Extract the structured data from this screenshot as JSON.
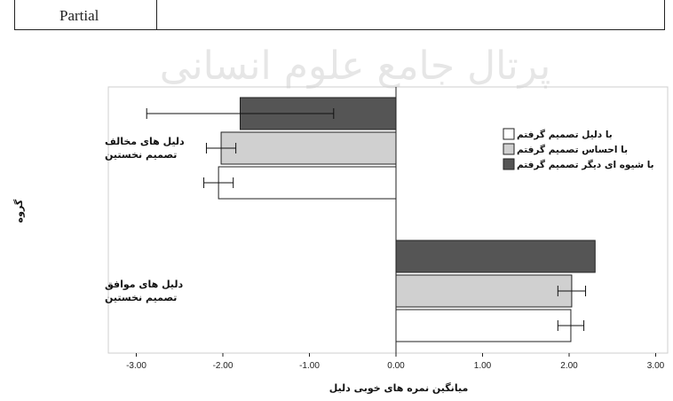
{
  "table_fragment": {
    "text": "Partial"
  },
  "watermark": {
    "text": "پرتال جامع علوم انسانی"
  },
  "chart_data": {
    "type": "bar",
    "orientation": "horizontal",
    "title": "",
    "xlabel": "میانگین نمره های خوبی دلیل",
    "ylabel": "گروه",
    "xlim": [
      -3.3,
      3.2
    ],
    "xticks": [
      "-3.00",
      "-2.00",
      "-1.00",
      "0.00",
      "1.00",
      "2.00",
      "3.00"
    ],
    "categories": [
      "دلیل های مخالف تصمیم نخستین",
      "دلیل های موافق تصمیم نخستین"
    ],
    "category_lines": [
      [
        "دلیل های مخالف",
        "تصمیم نخستین"
      ],
      [
        "دلیل های موافق",
        "تصمیم نخستین"
      ]
    ],
    "series": [
      {
        "name": "با دلیل تصمیم گرفتم",
        "color": "#ffffff",
        "values": [
          -2.05,
          2.02
        ],
        "error": [
          0.17,
          0.15
        ]
      },
      {
        "name": "با احساس تصمیم گرفتم",
        "color": "#d0d0d0",
        "values": [
          -2.02,
          2.03
        ],
        "error": [
          0.17,
          0.16
        ]
      },
      {
        "name": "با شیوه ای دیگر تصمیم گرفتم",
        "color": "#555555",
        "values": [
          -1.8,
          2.3
        ],
        "error": [
          1.08,
          null
        ]
      }
    ],
    "legend_position": "top-right",
    "grid": false
  }
}
